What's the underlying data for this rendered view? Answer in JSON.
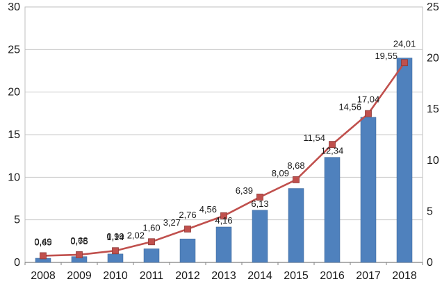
{
  "chart_data": {
    "type": "bar",
    "title": "",
    "categories": [
      "2008",
      "2009",
      "2010",
      "2011",
      "2012",
      "2013",
      "2014",
      "2015",
      "2016",
      "2017",
      "2018"
    ],
    "series": [
      {
        "name": "bar-series",
        "chart_type": "bar",
        "axis": "left",
        "color": "#4F81BD",
        "values": [
          0.49,
          0.68,
          0.99,
          1.6,
          2.76,
          4.16,
          6.13,
          8.68,
          12.34,
          17.04,
          24.01
        ],
        "data_labels": [
          "0,49",
          "0,68",
          "0,99",
          "1,60",
          "2,76",
          "4,16",
          "6,13",
          "8,68",
          "12,34",
          "17,04",
          "24,01"
        ]
      },
      {
        "name": "line-series",
        "chart_type": "line",
        "axis": "right",
        "color": "#C0504D",
        "values": [
          0.65,
          0.75,
          1.14,
          2.02,
          3.27,
          4.56,
          6.39,
          8.09,
          11.54,
          14.56,
          19.55
        ],
        "data_labels": [
          "0,65",
          "0,75",
          "1,14",
          "2,02",
          "3,27",
          "4,56",
          "6,39",
          "8,09",
          "11,54",
          "14,56",
          "19,55"
        ]
      }
    ],
    "left_axis": {
      "min": 0,
      "max": 30,
      "step": 5,
      "tick_labels": [
        "0",
        "5",
        "10",
        "15",
        "20",
        "25",
        "30"
      ]
    },
    "right_axis": {
      "min": 0,
      "max": 25,
      "step": 5,
      "tick_labels": [
        "0",
        "5",
        "10",
        "15",
        "20",
        "25"
      ]
    },
    "grid": true,
    "legend": "none",
    "decimal_separator": ",",
    "colors": {
      "bar": "#4F81BD",
      "line": "#C0504D",
      "gridline": "#C9C9C9",
      "plot_border": "#BFBFBF",
      "axis_line": "#808080",
      "text": "#1a1a1a",
      "background": "#FFFFFF"
    }
  }
}
